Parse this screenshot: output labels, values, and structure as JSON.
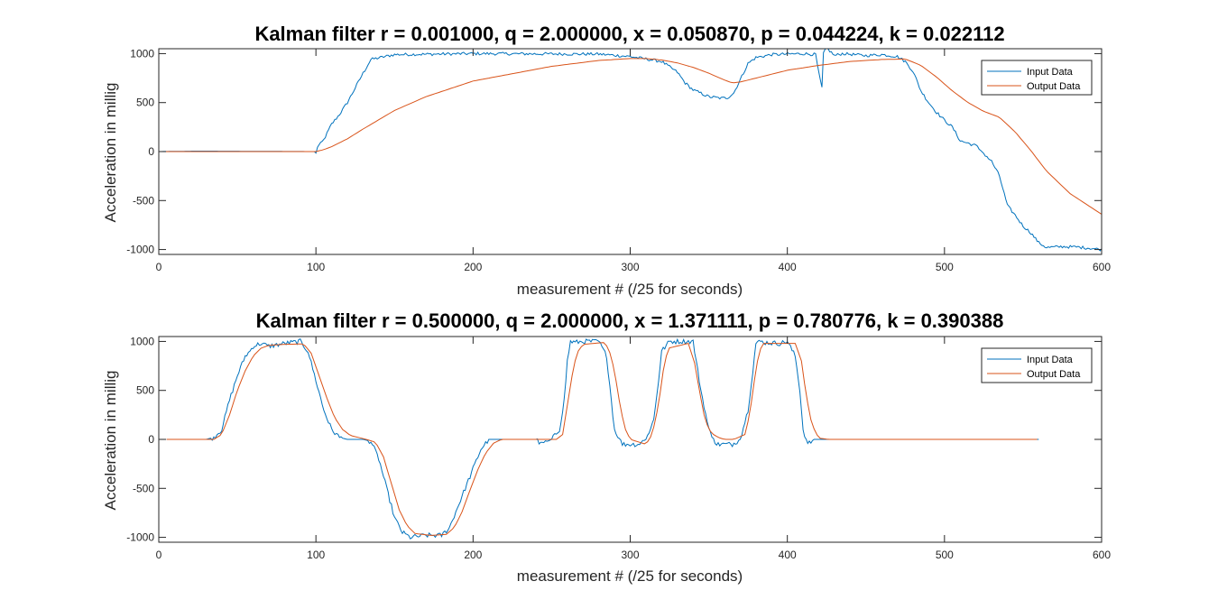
{
  "chart_data": [
    {
      "type": "line",
      "title": "Kalman filter r = 0.001000, q = 2.000000, x = 0.050870, p = 0.044224, k = 0.022112",
      "xlabel": "measurement # (/25 for seconds)",
      "ylabel": "Acceleration in millig",
      "xlim": [
        0,
        600
      ],
      "ylim": [
        -1050,
        1050
      ],
      "xticks": [
        0,
        100,
        200,
        300,
        400,
        500,
        600
      ],
      "yticks": [
        -1000,
        -500,
        0,
        500,
        1000
      ],
      "grid": false,
      "legend_position": "top-right",
      "series": [
        {
          "name": "Input Data",
          "color": "#0072BD",
          "noise": 15,
          "x": [
            0,
            25,
            99,
            100,
            101,
            103,
            105,
            110,
            115,
            120,
            125,
            130,
            135,
            150,
            200,
            280,
            300,
            320,
            330,
            335,
            340,
            350,
            358,
            362,
            366,
            375,
            380,
            390,
            400,
            410,
            418,
            420,
            422,
            423,
            425,
            430,
            435,
            450,
            460,
            470,
            475,
            480,
            485,
            490,
            495,
            500,
            505,
            510,
            520,
            530,
            535,
            540,
            545,
            550,
            555,
            560,
            565,
            575,
            585,
            595,
            600
          ],
          "y": [
            0,
            5,
            0,
            -20,
            50,
            80,
            120,
            280,
            380,
            500,
            650,
            800,
            940,
            990,
            1000,
            995,
            970,
            920,
            810,
            700,
            630,
            560,
            545,
            550,
            600,
            900,
            960,
            990,
            995,
            1000,
            990,
            800,
            650,
            1000,
            1060,
            980,
            1000,
            980,
            990,
            970,
            920,
            820,
            620,
            500,
            400,
            320,
            250,
            110,
            60,
            -100,
            -250,
            -550,
            -650,
            -760,
            -830,
            -930,
            -980,
            -970,
            -975,
            -990,
            -1000
          ]
        },
        {
          "name": "Output Data",
          "color": "#D95319",
          "noise": 0,
          "x": [
            0,
            100,
            105,
            110,
            120,
            130,
            150,
            170,
            200,
            230,
            250,
            280,
            300,
            310,
            320,
            330,
            340,
            350,
            360,
            365,
            370,
            380,
            400,
            420,
            440,
            460,
            475,
            485,
            495,
            505,
            515,
            525,
            535,
            545,
            555,
            565,
            580,
            600
          ],
          "y": [
            0,
            0,
            20,
            50,
            130,
            230,
            420,
            560,
            720,
            810,
            870,
            930,
            950,
            950,
            935,
            905,
            860,
            800,
            730,
            700,
            710,
            750,
            830,
            880,
            920,
            940,
            945,
            880,
            760,
            620,
            500,
            410,
            350,
            200,
            10,
            -200,
            -430,
            -640
          ]
        }
      ]
    },
    {
      "type": "line",
      "title": "Kalman filter r = 0.500000, q = 2.000000, x = 1.371111, p = 0.780776, k = 0.390388",
      "xlabel": "measurement # (/25 for seconds)",
      "ylabel": "Acceleration in millig",
      "xlim": [
        0,
        600
      ],
      "ylim": [
        -1050,
        1050
      ],
      "xticks": [
        0,
        100,
        200,
        300,
        400,
        500,
        600
      ],
      "yticks": [
        -1000,
        -500,
        0,
        500,
        1000
      ],
      "grid": false,
      "legend_position": "top-right",
      "series": [
        {
          "name": "Input Data",
          "color": "#0072BD",
          "noise": 25,
          "x": [
            5,
            30,
            35,
            40,
            45,
            50,
            55,
            58,
            60,
            65,
            70,
            80,
            90,
            95,
            100,
            105,
            110,
            115,
            120,
            125,
            130,
            135,
            140,
            145,
            150,
            155,
            160,
            170,
            180,
            185,
            190,
            195,
            200,
            205,
            210,
            215,
            220,
            228,
            240,
            243,
            250,
            255,
            258,
            260,
            262,
            265,
            270,
            280,
            285,
            288,
            290,
            295,
            300,
            305,
            310,
            315,
            318,
            320,
            325,
            335,
            340,
            345,
            350,
            355,
            360,
            365,
            370,
            375,
            378,
            380,
            383,
            385,
            395,
            400,
            405,
            408,
            410,
            413,
            417,
            420,
            425,
            430,
            433,
            436,
            500,
            560
          ],
          "y": [
            0,
            0,
            20,
            100,
            400,
            650,
            850,
            900,
            950,
            980,
            950,
            980,
            1000,
            900,
            600,
            300,
            100,
            20,
            0,
            0,
            0,
            -20,
            -200,
            -500,
            -800,
            -950,
            -1000,
            -980,
            -980,
            -900,
            -700,
            -500,
            -300,
            -100,
            0,
            0,
            0,
            0,
            0,
            -50,
            0,
            100,
            400,
            800,
            1000,
            990,
            1000,
            1000,
            850,
            400,
            100,
            -50,
            -50,
            -50,
            0,
            200,
            600,
            900,
            1000,
            1000,
            1000,
            500,
            100,
            -50,
            -50,
            -50,
            0,
            300,
            700,
            980,
            1000,
            990,
            980,
            1000,
            850,
            500,
            100,
            -50,
            0,
            0,
            0,
            0,
            0,
            0,
            0,
            0
          ]
        },
        {
          "name": "Output Data",
          "color": "#D95319",
          "noise": 0,
          "x": [
            5,
            35,
            40,
            45,
            50,
            55,
            60,
            65,
            70,
            80,
            92,
            97,
            102,
            107,
            112,
            117,
            122,
            132,
            138,
            143,
            148,
            153,
            158,
            163,
            173,
            183,
            188,
            193,
            198,
            203,
            208,
            213,
            218,
            245,
            253,
            257,
            260,
            263,
            266,
            270,
            284,
            288,
            291,
            294,
            297,
            300,
            310,
            314,
            318,
            321,
            324,
            337,
            341,
            344,
            347,
            350,
            353,
            356,
            360,
            366,
            373,
            376,
            379,
            382,
            385,
            405,
            409,
            412,
            415,
            418,
            421,
            426,
            560
          ],
          "y": [
            0,
            0,
            50,
            250,
            500,
            700,
            850,
            930,
            960,
            970,
            975,
            880,
            650,
            420,
            220,
            100,
            40,
            0,
            -30,
            -180,
            -450,
            -720,
            -880,
            -960,
            -980,
            -970,
            -900,
            -740,
            -520,
            -310,
            -140,
            -40,
            0,
            0,
            0,
            50,
            350,
            650,
            880,
            970,
            990,
            850,
            600,
            300,
            100,
            0,
            -50,
            50,
            350,
            700,
            930,
            980,
            780,
            500,
            250,
            100,
            50,
            20,
            0,
            0,
            50,
            250,
            600,
            900,
            980,
            980,
            800,
            450,
            200,
            60,
            10,
            0,
            0
          ]
        }
      ]
    }
  ]
}
